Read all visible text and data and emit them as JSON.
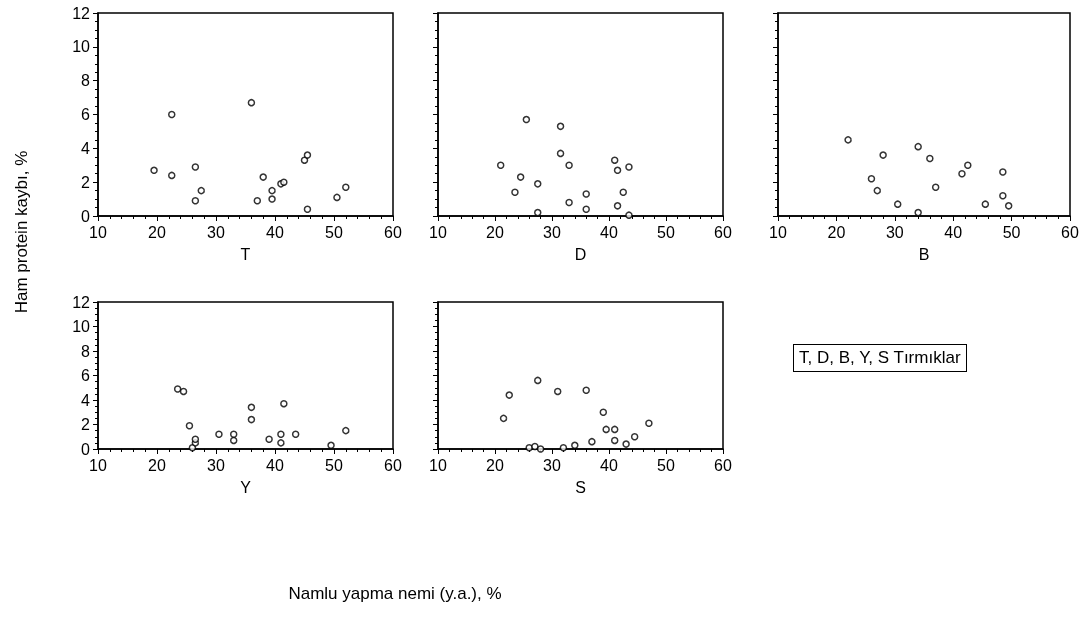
{
  "chart_data": [
    {
      "type": "scatter",
      "xlabel": "T",
      "ylabel": "Ham protein kaybı, %",
      "x": [
        19.5,
        22.5,
        22.5,
        26.5,
        26.5,
        27.5,
        36,
        37,
        38,
        39.5,
        39.5,
        41,
        41.5,
        45,
        45.5,
        45.5,
        50.5,
        52
      ],
      "values": [
        2.7,
        6.0,
        2.4,
        2.9,
        0.9,
        1.5,
        6.7,
        0.9,
        2.3,
        1.5,
        1.0,
        1.9,
        2.0,
        3.3,
        3.6,
        0.4,
        1.1,
        1.7
      ],
      "color": "#000000",
      "marker": "circle",
      "xlim": [
        10,
        60
      ],
      "xticks": [
        10,
        20,
        30,
        40,
        50,
        60
      ],
      "ylim": [
        0,
        12
      ],
      "yticks": [
        0,
        2,
        4,
        6,
        8,
        10,
        12
      ],
      "grid": false
    },
    {
      "type": "scatter",
      "xlabel": "D",
      "x": [
        21,
        23.5,
        24.5,
        25.5,
        27.5,
        27.5,
        31.5,
        31.5,
        33,
        33,
        36,
        36,
        41,
        41.5,
        41.5,
        42.5,
        43.5,
        43.5
      ],
      "values": [
        3.0,
        1.4,
        2.3,
        5.7,
        1.9,
        0.2,
        5.3,
        3.7,
        3.0,
        0.8,
        1.3,
        0.4,
        3.3,
        2.7,
        0.6,
        1.4,
        2.9,
        0.05
      ],
      "color": "#000000",
      "marker": "circle",
      "xlim": [
        10,
        60
      ],
      "xticks": [
        10,
        20,
        30,
        40,
        50,
        60
      ],
      "ylim": [
        0,
        12
      ],
      "yticks": [
        0,
        2,
        4,
        6,
        8,
        10,
        12
      ],
      "grid": false,
      "tick_labels": "x"
    },
    {
      "type": "scatter",
      "xlabel": "B",
      "x": [
        22,
        26,
        27,
        28,
        30.5,
        34,
        34,
        36,
        37,
        41.5,
        42.5,
        45.5,
        48.5,
        48.5,
        49.5
      ],
      "values": [
        4.5,
        2.2,
        1.5,
        3.6,
        0.7,
        4.1,
        0.2,
        3.4,
        1.7,
        2.5,
        3.0,
        0.7,
        2.6,
        1.2,
        0.6
      ],
      "color": "#000000",
      "marker": "circle",
      "xlim": [
        10,
        60
      ],
      "xticks": [
        10,
        20,
        30,
        40,
        50,
        60
      ],
      "ylim": [
        0,
        12
      ],
      "yticks": [
        0,
        2,
        4,
        6,
        8,
        10,
        12
      ],
      "grid": false,
      "tick_labels": "x"
    },
    {
      "type": "scatter",
      "xlabel": "Y",
      "x": [
        23.5,
        24.5,
        25.5,
        26,
        26.5,
        26.5,
        30.5,
        33,
        33,
        36,
        36,
        39,
        41,
        41.5,
        41,
        43.5,
        49.5,
        52
      ],
      "values": [
        4.9,
        4.7,
        1.9,
        0.1,
        0.5,
        0.8,
        1.2,
        1.2,
        0.7,
        3.4,
        2.4,
        0.8,
        1.2,
        3.7,
        0.5,
        1.2,
        0.3,
        1.5
      ],
      "color": "#000000",
      "marker": "circle",
      "xlim": [
        10,
        60
      ],
      "xticks": [
        10,
        20,
        30,
        40,
        50,
        60
      ],
      "ylim": [
        0,
        12
      ],
      "yticks": [
        0,
        2,
        4,
        6,
        8,
        10,
        12
      ],
      "grid": false
    },
    {
      "type": "scatter",
      "xlabel": "S",
      "x": [
        21.5,
        22.5,
        26,
        27,
        27.5,
        28,
        31,
        32,
        34,
        36,
        37,
        39,
        39.5,
        41,
        41,
        43,
        44.5,
        47
      ],
      "values": [
        2.5,
        4.4,
        0.1,
        0.2,
        5.6,
        0.0,
        4.7,
        0.1,
        0.3,
        4.8,
        0.6,
        3.0,
        1.6,
        1.6,
        0.7,
        0.4,
        1.0,
        2.1
      ],
      "color": "#000000",
      "marker": "circle",
      "xlim": [
        10,
        60
      ],
      "xticks": [
        10,
        20,
        30,
        40,
        50,
        60
      ],
      "ylim": [
        0,
        12
      ],
      "yticks": [
        0,
        2,
        4,
        6,
        8,
        10,
        12
      ],
      "grid": false,
      "tick_labels": "x"
    },
    {
      "type": "other",
      "annotations": [
        "Namlu yapma nemi (y.a.), %",
        "T, D, B, Y, S Tırmıklar"
      ]
    }
  ]
}
